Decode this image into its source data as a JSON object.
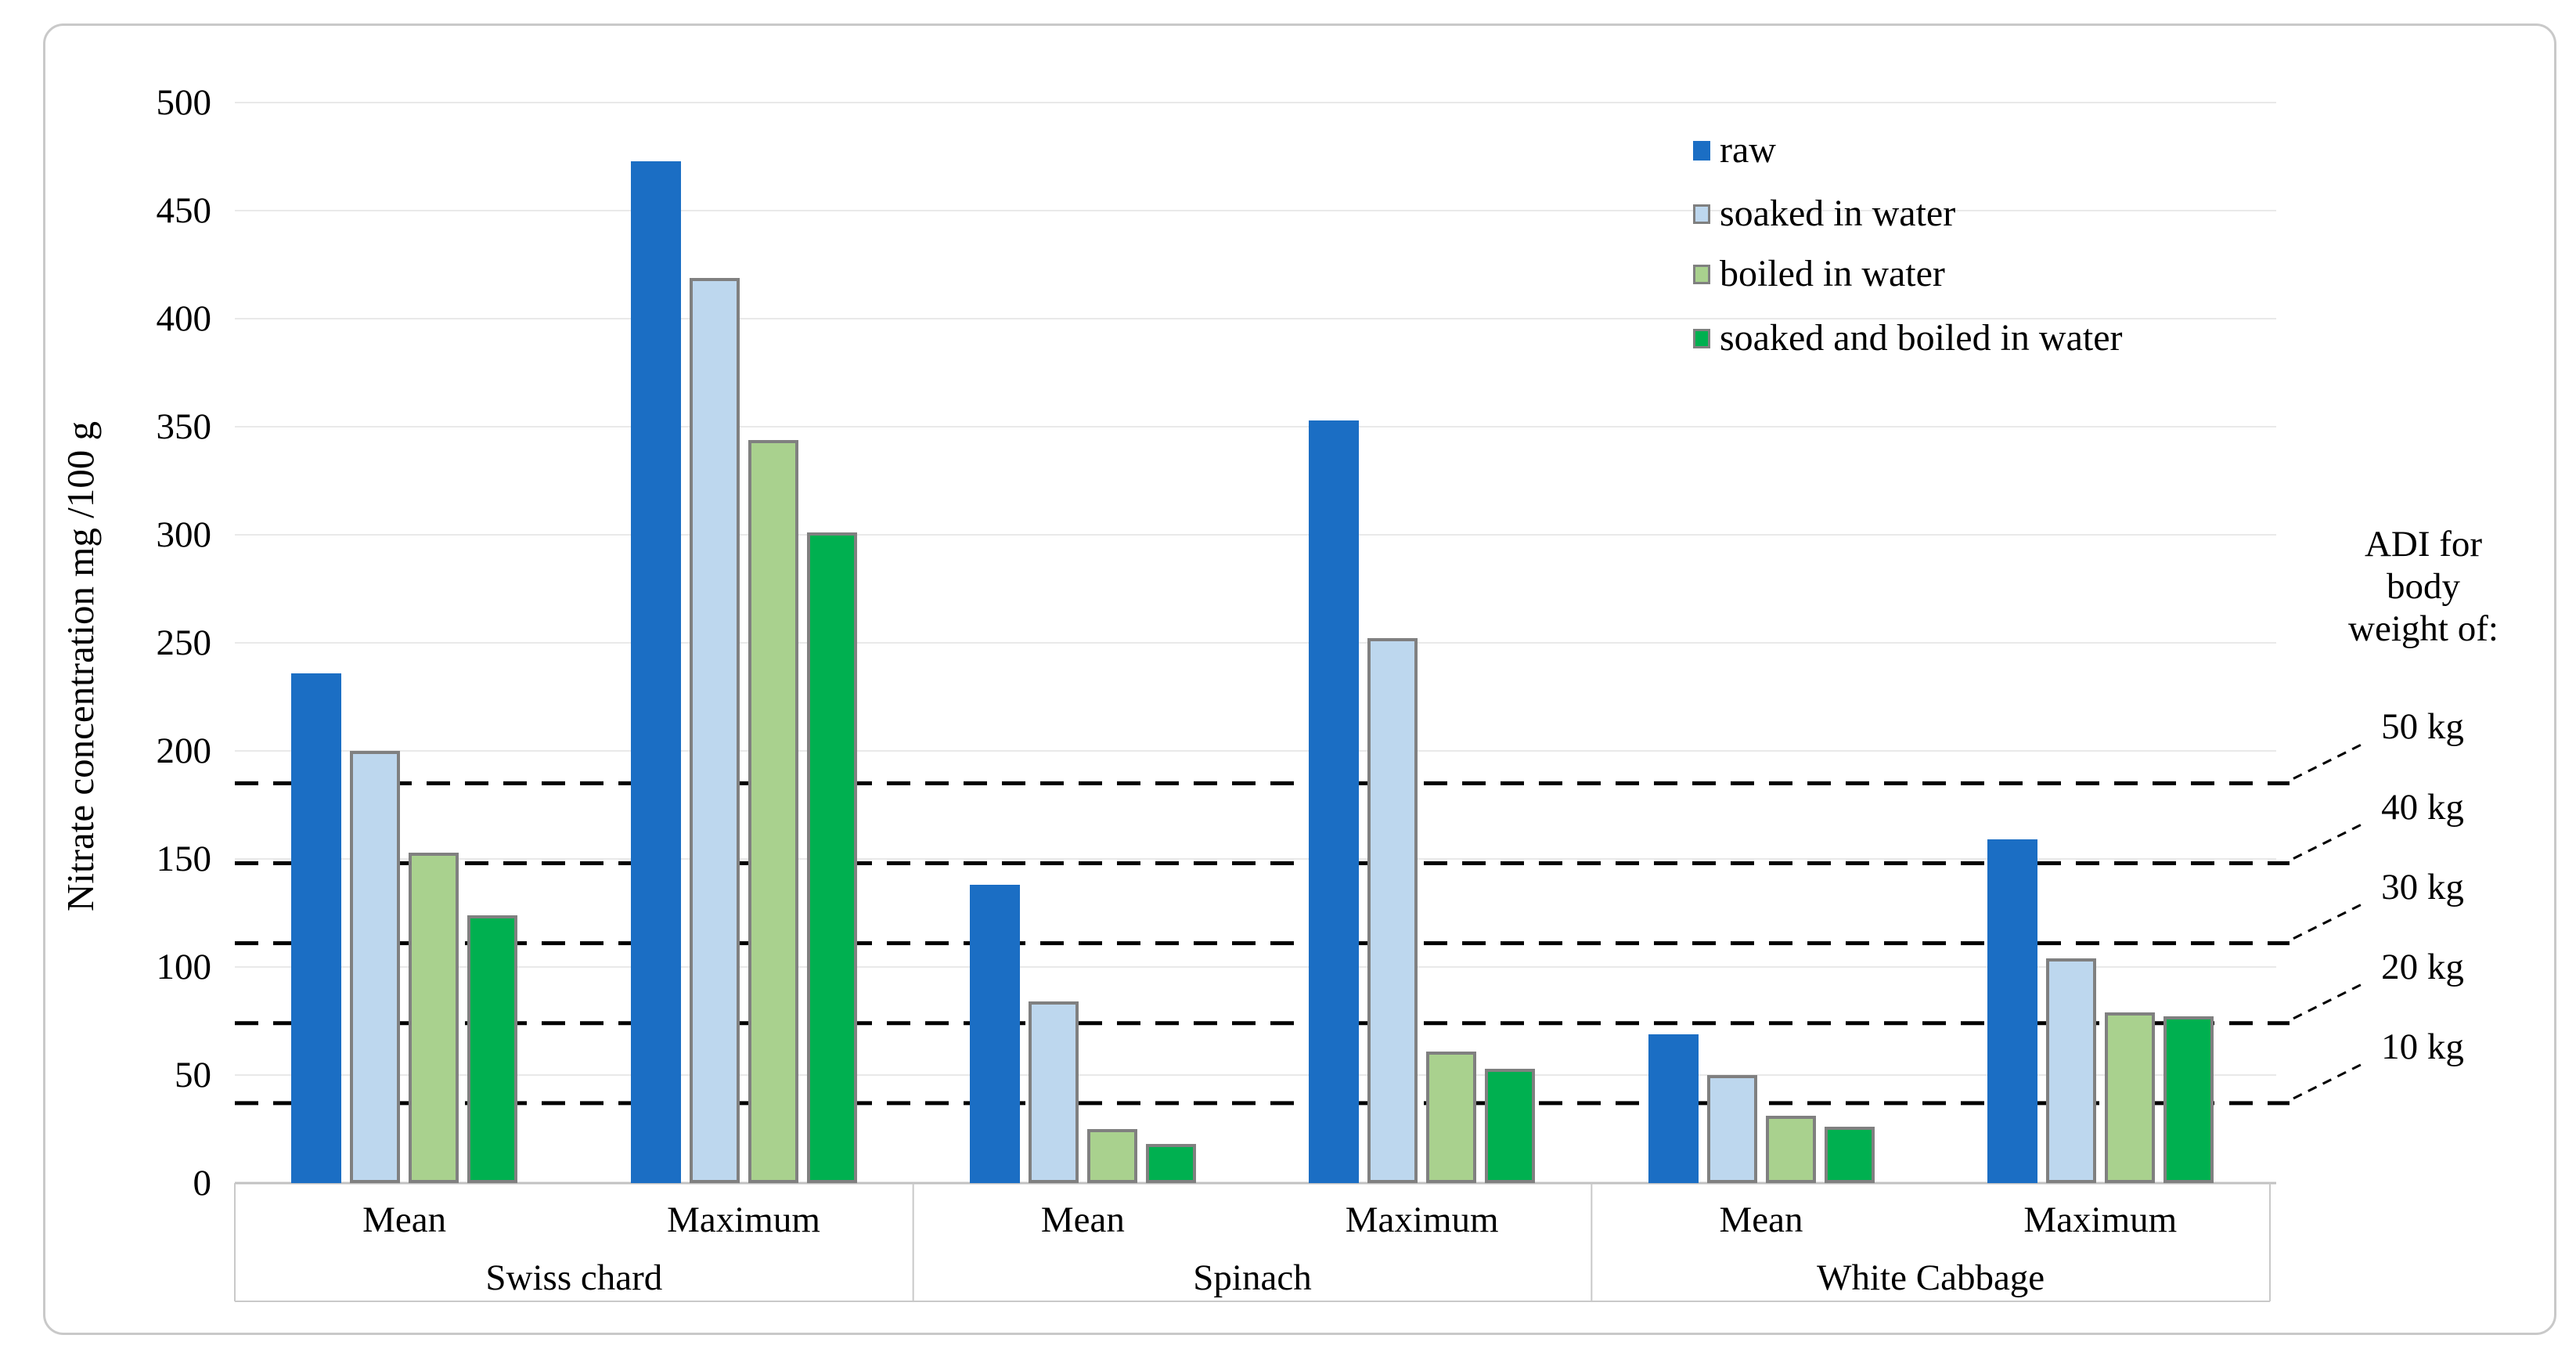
{
  "figure": {
    "y_axis_title": "Nitrate concentration mg /100 g",
    "adi_header": "ADI for\nbody\nweight of:",
    "colors": {
      "grid": "#e9e9e9",
      "axis_line": "#c2c2c2",
      "category_box": "#c9c9c9",
      "dashed_line": "#000000",
      "bar_border": "#808080",
      "figure_border": "#c9c9c9"
    }
  },
  "chart_data": {
    "type": "bar",
    "title": "",
    "xlabel": "",
    "ylabel": "Nitrate concentration mg /100 g",
    "ylim": [
      0,
      500
    ],
    "yticks": [
      0,
      50,
      100,
      150,
      200,
      250,
      300,
      350,
      400,
      450,
      500
    ],
    "grid": "horizontal",
    "legend_position": "top-right",
    "categories": [
      "Swiss chard",
      "Spinach",
      "White Cabbage"
    ],
    "subcategories": [
      "Mean",
      "Maximum"
    ],
    "series": [
      {
        "name": "raw",
        "color": "#1b6ec4",
        "values": [
          [
            236,
            473
          ],
          [
            138,
            353
          ],
          [
            69,
            159
          ]
        ]
      },
      {
        "name": "soaked in water",
        "color": "#bdd7ee",
        "values": [
          [
            200,
            419
          ],
          [
            84,
            252
          ],
          [
            50,
            104
          ]
        ]
      },
      {
        "name": "boiled in water",
        "color": "#a9d18e",
        "values": [
          [
            153,
            344
          ],
          [
            25,
            61
          ],
          [
            31,
            79
          ]
        ]
      },
      {
        "name": "soaked and boiled in water",
        "color": "#00b050",
        "values": [
          [
            124,
            301
          ],
          [
            18,
            53
          ],
          [
            26,
            77
          ]
        ]
      }
    ],
    "annotations": {
      "adi_reference_lines": [
        {
          "label": "50 kg",
          "value": 185
        },
        {
          "label": "40 kg",
          "value": 148
        },
        {
          "label": "30 kg",
          "value": 111
        },
        {
          "label": "20 kg",
          "value": 74
        },
        {
          "label": "10 kg",
          "value": 37
        }
      ]
    }
  }
}
